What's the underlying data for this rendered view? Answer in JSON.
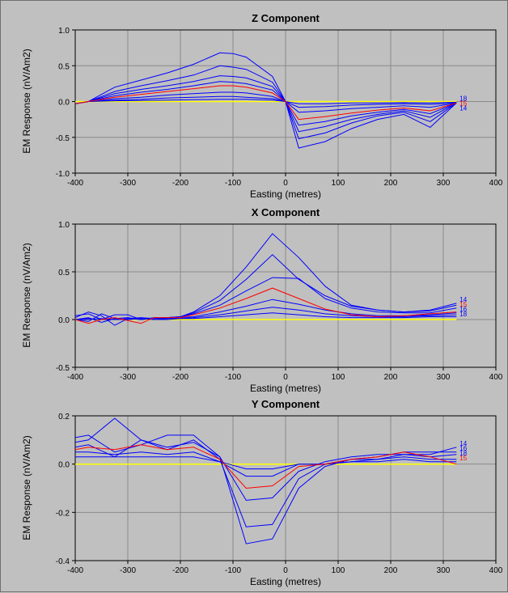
{
  "chart_data": [
    {
      "type": "line",
      "title": "Z Component",
      "xlabel": "Easting (metres)",
      "ylabel": "EM Response (nV/Am2)",
      "xlim": [
        -400,
        400
      ],
      "ylim": [
        -1.0,
        1.0
      ],
      "xticks": [
        -400,
        -300,
        -200,
        -100,
        0,
        100,
        200,
        300,
        400
      ],
      "yticks": [
        -1.0,
        -0.5,
        0.0,
        0.5,
        1.0
      ],
      "ytick_labels": [
        "-1.0",
        "-0.5",
        "0.0",
        "0.5",
        "1.0"
      ],
      "grid": true,
      "x": [
        -400,
        -375,
        -325,
        -275,
        -225,
        -175,
        -125,
        -100,
        -75,
        -25,
        0,
        25,
        75,
        125,
        175,
        225,
        275,
        325
      ],
      "series": [
        {
          "name": "",
          "color": "#0000ff",
          "values": [
            -0.03,
            0.0,
            0.2,
            0.3,
            0.4,
            0.52,
            0.68,
            0.67,
            0.62,
            0.35,
            0.0,
            -0.65,
            -0.56,
            -0.38,
            -0.25,
            -0.18,
            -0.36,
            -0.02
          ]
        },
        {
          "name": "",
          "color": "#0000ff",
          "values": [
            -0.03,
            0.0,
            0.14,
            0.22,
            0.29,
            0.37,
            0.5,
            0.48,
            0.45,
            0.27,
            0.0,
            -0.52,
            -0.44,
            -0.3,
            -0.2,
            -0.15,
            -0.28,
            -0.02
          ]
        },
        {
          "name": "",
          "color": "#0000ff",
          "values": [
            -0.03,
            0.0,
            0.11,
            0.17,
            0.22,
            0.28,
            0.36,
            0.35,
            0.33,
            0.21,
            0.0,
            -0.42,
            -0.35,
            -0.25,
            -0.18,
            -0.13,
            -0.22,
            -0.02
          ]
        },
        {
          "name": "",
          "color": "#0000ff",
          "values": [
            -0.03,
            0.0,
            0.08,
            0.13,
            0.17,
            0.22,
            0.28,
            0.27,
            0.25,
            0.16,
            0.0,
            -0.33,
            -0.28,
            -0.2,
            -0.15,
            -0.11,
            -0.17,
            -0.02
          ]
        },
        {
          "name": "",
          "color": "#ff0000",
          "values": [
            -0.03,
            0.0,
            0.06,
            0.1,
            0.14,
            0.18,
            0.22,
            0.22,
            0.2,
            0.12,
            0.0,
            -0.25,
            -0.21,
            -0.16,
            -0.12,
            -0.09,
            -0.13,
            -0.02
          ]
        },
        {
          "name": "",
          "color": "#0000ff",
          "values": [
            -0.03,
            0.0,
            0.04,
            0.06,
            0.09,
            0.11,
            0.13,
            0.13,
            0.12,
            0.07,
            0.0,
            -0.15,
            -0.13,
            -0.1,
            -0.08,
            -0.06,
            -0.08,
            -0.02
          ]
        },
        {
          "name": "",
          "color": "#0000ff",
          "values": [
            -0.03,
            0.0,
            0.02,
            0.03,
            0.05,
            0.06,
            0.07,
            0.07,
            0.06,
            0.04,
            0.0,
            -0.08,
            -0.07,
            -0.05,
            -0.04,
            -0.03,
            -0.04,
            -0.02
          ]
        },
        {
          "name": "",
          "color": "#0000ff",
          "values": [
            -0.03,
            0.0,
            0.01,
            0.015,
            0.02,
            0.025,
            0.03,
            0.03,
            0.03,
            0.02,
            0.0,
            -0.03,
            -0.03,
            -0.02,
            -0.02,
            -0.015,
            -0.02,
            -0.01
          ]
        },
        {
          "name": "",
          "color": "#ffff00",
          "values": [
            0.0,
            0.0,
            0.0,
            0.0,
            0.0,
            0.0,
            0.0,
            0.0,
            0.0,
            0.0,
            0.0,
            0.0,
            0.0,
            0.0,
            0.0,
            0.0,
            0.0,
            0.0
          ]
        }
      ],
      "channel_tags": [
        {
          "text": "18",
          "color": "#0000ff"
        },
        {
          "text": "15",
          "color": "#ff0000"
        },
        {
          "text": "14",
          "color": "#0000ff"
        }
      ]
    },
    {
      "type": "line",
      "title": "X Component",
      "xlabel": "Easting (metres)",
      "ylabel": "EM Response (nV/Am2)",
      "xlim": [
        -400,
        400
      ],
      "ylim": [
        -0.5,
        1.0
      ],
      "xticks": [
        -400,
        -300,
        -200,
        -100,
        0,
        100,
        200,
        300,
        400
      ],
      "yticks": [
        -0.5,
        0.0,
        0.5,
        1.0
      ],
      "ytick_labels": [
        "-0.5",
        "0.0",
        "0.5",
        "1.0"
      ],
      "grid": true,
      "x": [
        -400,
        -375,
        -350,
        -325,
        -300,
        -275,
        -250,
        -225,
        -200,
        -175,
        -125,
        -75,
        -25,
        25,
        75,
        125,
        175,
        225,
        275,
        325
      ],
      "series": [
        {
          "name": "",
          "color": "#0000ff",
          "values": [
            0.04,
            0.06,
            0.0,
            0.05,
            0.05,
            0.0,
            0.02,
            0.02,
            0.03,
            0.08,
            0.25,
            0.55,
            0.9,
            0.65,
            0.35,
            0.15,
            0.1,
            0.08,
            0.1,
            0.17
          ]
        },
        {
          "name": "",
          "color": "#0000ff",
          "values": [
            0.02,
            0.08,
            0.04,
            -0.06,
            0.01,
            0.02,
            0.01,
            0.02,
            0.03,
            0.07,
            0.2,
            0.42,
            0.68,
            0.42,
            0.25,
            0.14,
            0.1,
            0.08,
            0.09,
            0.15
          ]
        },
        {
          "name": "",
          "color": "#0000ff",
          "values": [
            0.0,
            -0.02,
            0.06,
            0.01,
            0.02,
            0.0,
            0.01,
            0.02,
            0.03,
            0.06,
            0.15,
            0.3,
            0.44,
            0.43,
            0.22,
            0.12,
            0.08,
            0.07,
            0.07,
            0.12
          ]
        },
        {
          "name": "",
          "color": "#ff0000",
          "values": [
            0.0,
            -0.04,
            0.0,
            0.02,
            -0.01,
            -0.04,
            0.02,
            0.02,
            0.02,
            0.05,
            0.12,
            0.22,
            0.33,
            0.22,
            0.11,
            0.05,
            0.03,
            0.04,
            0.06,
            0.08
          ]
        },
        {
          "name": "",
          "color": "#0000ff",
          "values": [
            0.0,
            0.02,
            -0.03,
            0.01,
            0.0,
            0.01,
            0.0,
            0.01,
            0.02,
            0.03,
            0.08,
            0.14,
            0.21,
            0.16,
            0.1,
            0.06,
            0.04,
            0.04,
            0.05,
            0.07
          ]
        },
        {
          "name": "",
          "color": "#0000ff",
          "values": [
            0.0,
            0.01,
            0.0,
            0.0,
            0.01,
            0.0,
            0.01,
            0.01,
            0.01,
            0.02,
            0.05,
            0.09,
            0.13,
            0.1,
            0.06,
            0.04,
            0.03,
            0.03,
            0.04,
            0.05
          ]
        },
        {
          "name": "",
          "color": "#0000ff",
          "values": [
            0.0,
            0.0,
            0.01,
            0.0,
            0.0,
            0.01,
            0.0,
            0.0,
            0.01,
            0.01,
            0.03,
            0.05,
            0.07,
            0.05,
            0.03,
            0.02,
            0.02,
            0.02,
            0.03,
            0.03
          ]
        },
        {
          "name": "",
          "color": "#ffff00",
          "values": [
            0.0,
            0.0,
            0.0,
            0.0,
            0.0,
            0.0,
            0.0,
            0.0,
            0.0,
            0.0,
            0.0,
            0.0,
            0.0,
            0.0,
            0.0,
            0.0,
            0.0,
            0.0,
            0.0,
            0.0
          ]
        }
      ],
      "channel_tags": [
        {
          "text": "14",
          "color": "#0000ff"
        },
        {
          "text": "15",
          "color": "#ff0000"
        },
        {
          "text": "16",
          "color": "#0000ff"
        },
        {
          "text": "18",
          "color": "#0000ff"
        }
      ]
    },
    {
      "type": "line",
      "title": "Y Component",
      "xlabel": "Easting (metres)",
      "ylabel": "EM Response (nV/Am2)",
      "xlim": [
        -400,
        400
      ],
      "ylim": [
        -0.4,
        0.2
      ],
      "xticks": [
        -400,
        -300,
        -200,
        -100,
        0,
        100,
        200,
        300,
        400
      ],
      "yticks": [
        -0.4,
        -0.2,
        0.0,
        0.2
      ],
      "ytick_labels": [
        "-0.4",
        "-0.2",
        "0.0",
        "0.2"
      ],
      "grid": true,
      "x": [
        -400,
        -375,
        -325,
        -275,
        -225,
        -175,
        -125,
        -75,
        -25,
        25,
        75,
        125,
        175,
        225,
        275,
        325
      ],
      "series": [
        {
          "name": "",
          "color": "#0000ff",
          "values": [
            0.11,
            0.12,
            0.05,
            0.08,
            0.12,
            0.12,
            0.03,
            -0.33,
            -0.31,
            -0.1,
            -0.01,
            0.02,
            0.02,
            0.04,
            0.04,
            0.07
          ]
        },
        {
          "name": "",
          "color": "#0000ff",
          "values": [
            0.09,
            0.1,
            0.19,
            0.1,
            0.06,
            0.1,
            0.02,
            -0.26,
            -0.25,
            -0.06,
            0.0,
            0.02,
            0.03,
            0.05,
            0.05,
            0.05
          ]
        },
        {
          "name": "",
          "color": "#0000ff",
          "values": [
            0.07,
            0.08,
            0.03,
            0.1,
            0.07,
            0.09,
            0.03,
            -0.15,
            -0.14,
            -0.03,
            0.01,
            0.03,
            0.04,
            0.04,
            0.03,
            0.04
          ]
        },
        {
          "name": "",
          "color": "#ff0000",
          "values": [
            0.06,
            0.07,
            0.06,
            0.08,
            0.06,
            0.07,
            0.02,
            -0.1,
            -0.09,
            -0.01,
            0.0,
            0.02,
            0.03,
            0.05,
            0.03,
            0.0
          ]
        },
        {
          "name": "",
          "color": "#0000ff",
          "values": [
            0.05,
            0.05,
            0.04,
            0.05,
            0.04,
            0.05,
            0.01,
            -0.05,
            -0.05,
            0.0,
            0.0,
            0.01,
            0.02,
            0.03,
            0.02,
            0.02
          ]
        },
        {
          "name": "",
          "color": "#0000ff",
          "values": [
            0.03,
            0.03,
            0.03,
            0.03,
            0.03,
            0.03,
            0.01,
            -0.02,
            -0.02,
            0.0,
            0.0,
            0.01,
            0.01,
            0.02,
            0.01,
            0.01
          ]
        },
        {
          "name": "",
          "color": "#ffff00",
          "values": [
            0.0,
            0.0,
            0.0,
            0.0,
            0.0,
            0.0,
            0.0,
            0.0,
            0.0,
            0.0,
            0.0,
            0.0,
            0.0,
            0.0,
            0.0,
            0.0
          ]
        }
      ],
      "channel_tags": [
        {
          "text": "14",
          "color": "#0000ff"
        },
        {
          "text": "16",
          "color": "#0000ff"
        },
        {
          "text": "18",
          "color": "#0000ff"
        },
        {
          "text": "15",
          "color": "#ff0000"
        }
      ]
    }
  ]
}
